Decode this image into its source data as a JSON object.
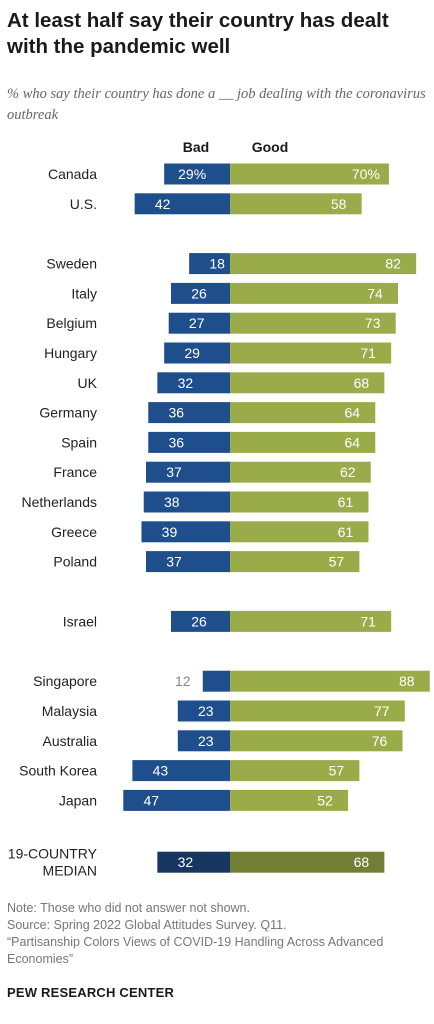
{
  "title": "At least half say their country has dealt with the pandemic well",
  "subtitle": "% who say their country has done a __ job dealing with the coronavirus outbreak",
  "notes": {
    "note": "Note: Those who did not answer not shown.",
    "source": "Source: Spring 2022 Global Attitudes Survey. Q11.",
    "report": "“Partisanship Colors Views of COVID-19 Handling Across Advanced Economies”"
  },
  "footer": "PEW RESEARCH CENTER",
  "colors": {
    "bad": "#1f4e8c",
    "good": "#9aab4a",
    "bad_median": "#17355e",
    "good_median": "#717f34"
  },
  "chart_data": {
    "type": "bar",
    "orientation": "horizontal-diverging",
    "series": [
      {
        "name": "Bad",
        "values": [
          29,
          42,
          18,
          26,
          27,
          29,
          32,
          36,
          36,
          37,
          38,
          39,
          37,
          26,
          12,
          23,
          23,
          43,
          47,
          32
        ]
      },
      {
        "name": "Good",
        "values": [
          70,
          58,
          82,
          74,
          73,
          71,
          68,
          64,
          64,
          62,
          61,
          61,
          57,
          71,
          88,
          77,
          76,
          57,
          52,
          68
        ]
      }
    ],
    "categories": [
      "Canada",
      "U.S.",
      "Sweden",
      "Italy",
      "Belgium",
      "Hungary",
      "UK",
      "Germany",
      "Spain",
      "France",
      "Netherlands",
      "Greece",
      "Poland",
      "Israel",
      "Singapore",
      "Malaysia",
      "Australia",
      "South Korea",
      "Japan",
      "19-COUNTRY MEDIAN"
    ],
    "category_lines": [
      [
        "Canada"
      ],
      [
        "U.S."
      ],
      [
        "Sweden"
      ],
      [
        "Italy"
      ],
      [
        "Belgium"
      ],
      [
        "Hungary"
      ],
      [
        "UK"
      ],
      [
        "Germany"
      ],
      [
        "Spain"
      ],
      [
        "France"
      ],
      [
        "Netherlands"
      ],
      [
        "Greece"
      ],
      [
        "Poland"
      ],
      [
        "Israel"
      ],
      [
        "Singapore"
      ],
      [
        "Malaysia"
      ],
      [
        "Australia"
      ],
      [
        "South Korea"
      ],
      [
        "Japan"
      ],
      [
        "19-COUNTRY",
        "MEDIAN"
      ]
    ],
    "value_labels": {
      "Bad": [
        "29%",
        "42",
        "18",
        "26",
        "27",
        "29",
        "32",
        "36",
        "36",
        "37",
        "38",
        "39",
        "37",
        "26",
        "12",
        "23",
        "23",
        "43",
        "47",
        "32"
      ],
      "Good": [
        "70%",
        "58",
        "82",
        "74",
        "73",
        "71",
        "68",
        "64",
        "64",
        "62",
        "61",
        "61",
        "57",
        "71",
        "88",
        "77",
        "76",
        "57",
        "52",
        "68"
      ]
    },
    "groups": [
      [
        0,
        1
      ],
      [
        2,
        3,
        4,
        5,
        6,
        7,
        8,
        9,
        10,
        11,
        12
      ],
      [
        13
      ],
      [
        14,
        15,
        16,
        17,
        18
      ],
      [
        19
      ]
    ],
    "highlight_category": "19-COUNTRY MEDIAN",
    "legend": [
      "Bad",
      "Good"
    ],
    "legend_position": "top"
  }
}
